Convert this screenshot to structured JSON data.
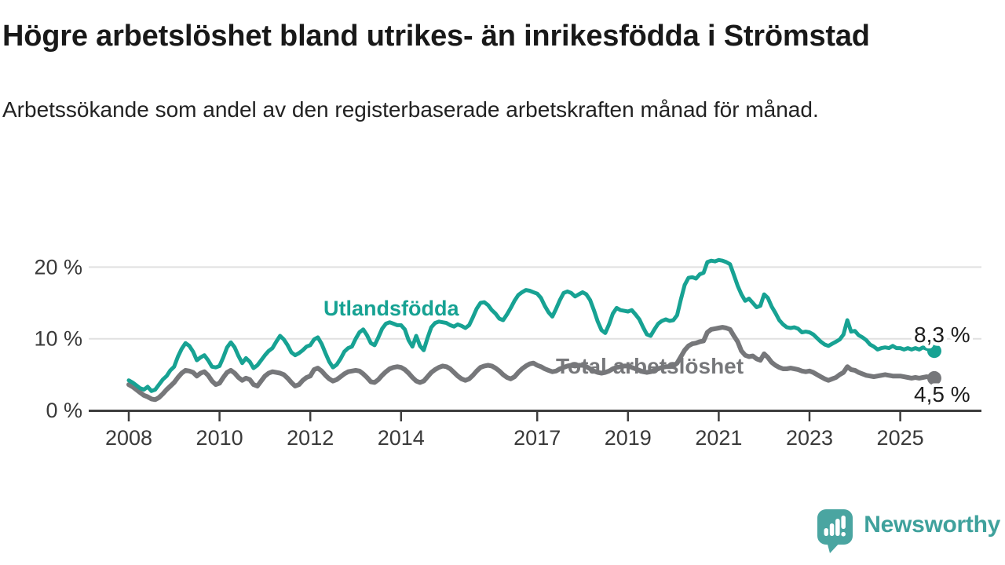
{
  "header": {
    "title": "Högre arbetslöshet bland utrikes- än inrikesfödda i Strömstad",
    "subtitle": "Arbetssökande som andel av den registerbaserade arbetskraften månad för månad."
  },
  "chart_data": {
    "type": "line",
    "title": "Högre arbetslöshet bland utrikes- än inrikesfödda i Strömstad",
    "subtitle": "Arbetssökande som andel av den registerbaserade arbetskraften månad för månad.",
    "x_start": "2008-01",
    "x_end": "2025-10",
    "frequency": "monthly",
    "xlabel": "",
    "ylabel": "",
    "ylim": [
      0,
      22
    ],
    "grid": "horizontal",
    "legend_position": "inline-labels",
    "xticks": [
      2008,
      2010,
      2012,
      2014,
      2017,
      2019,
      2021,
      2023,
      2025
    ],
    "yticks": [
      {
        "value": 0,
        "label": "0 %"
      },
      {
        "value": 10,
        "label": "10 %"
      },
      {
        "value": 20,
        "label": "20 %"
      }
    ],
    "series": [
      {
        "name": "Utlandsfödda",
        "color": "#17a293",
        "end_label": "8,3 %",
        "end_value": 8.3,
        "values": [
          4.2,
          3.9,
          3.5,
          3.1,
          2.9,
          3.3,
          2.7,
          2.9,
          3.6,
          4.3,
          4.8,
          5.6,
          6.1,
          7.5,
          8.6,
          9.4,
          9.0,
          8.2,
          7.0,
          7.4,
          7.7,
          7.0,
          6.1,
          6.0,
          6.2,
          7.4,
          8.8,
          9.5,
          8.8,
          7.6,
          6.6,
          7.3,
          6.8,
          5.9,
          6.3,
          7.0,
          7.7,
          8.3,
          8.7,
          9.6,
          10.4,
          9.9,
          9.1,
          8.1,
          7.7,
          8.0,
          8.4,
          8.9,
          9.1,
          9.9,
          10.2,
          9.3,
          8.0,
          6.8,
          6.0,
          6.4,
          7.2,
          8.2,
          8.7,
          8.9,
          10.0,
          10.9,
          11.3,
          10.5,
          9.4,
          9.1,
          10.2,
          11.4,
          12.1,
          12.3,
          12.1,
          11.9,
          11.9,
          11.3,
          9.8,
          8.9,
          10.4,
          9.0,
          8.4,
          10.1,
          11.6,
          12.2,
          12.4,
          12.3,
          12.2,
          11.9,
          11.7,
          12.0,
          11.8,
          11.5,
          11.9,
          13.0,
          14.2,
          15.0,
          15.1,
          14.7,
          14.0,
          13.5,
          12.8,
          12.6,
          13.4,
          14.3,
          15.3,
          16.1,
          16.5,
          16.8,
          16.7,
          16.5,
          16.3,
          15.7,
          14.6,
          13.7,
          13.1,
          14.2,
          15.4,
          16.4,
          16.6,
          16.4,
          15.9,
          16.2,
          16.5,
          16.2,
          15.4,
          14.0,
          12.4,
          11.2,
          10.8,
          12.0,
          13.5,
          14.3,
          14.0,
          13.9,
          13.8,
          14.0,
          13.4,
          12.7,
          11.6,
          10.6,
          10.4,
          11.3,
          12.1,
          12.5,
          12.7,
          12.5,
          12.6,
          13.3,
          15.5,
          17.5,
          18.5,
          18.6,
          18.4,
          19.0,
          19.2,
          20.7,
          20.9,
          20.8,
          21.0,
          20.9,
          20.7,
          20.4,
          18.9,
          17.4,
          16.2,
          15.3,
          15.6,
          15.0,
          14.4,
          14.6,
          16.2,
          15.7,
          14.5,
          13.6,
          12.6,
          12.0,
          11.6,
          11.5,
          11.6,
          11.4,
          10.9,
          11.0,
          10.9,
          10.6,
          10.1,
          9.6,
          9.2,
          9.0,
          9.3,
          9.6,
          9.9,
          10.6,
          12.6,
          11.0,
          11.1,
          10.5,
          10.2,
          9.8,
          9.2,
          8.9,
          8.5,
          8.7,
          8.8,
          8.7,
          9.0,
          8.7,
          8.7,
          8.5,
          8.7,
          8.5,
          8.7,
          8.5,
          8.8,
          8.6,
          8.4,
          8.3
        ]
      },
      {
        "name": "Total arbetslöshet",
        "color": "#76777a",
        "end_label": "4,5 %",
        "end_value": 4.5,
        "values": [
          3.6,
          3.3,
          2.9,
          2.5,
          2.1,
          1.9,
          1.6,
          1.5,
          1.8,
          2.3,
          2.9,
          3.4,
          3.9,
          4.6,
          5.2,
          5.6,
          5.5,
          5.3,
          4.8,
          5.2,
          5.4,
          4.9,
          4.1,
          3.6,
          3.8,
          4.6,
          5.3,
          5.6,
          5.2,
          4.6,
          4.2,
          4.5,
          4.3,
          3.6,
          3.4,
          4.1,
          4.8,
          5.2,
          5.4,
          5.3,
          5.2,
          5.0,
          4.5,
          3.9,
          3.4,
          3.6,
          4.2,
          4.6,
          4.8,
          5.7,
          5.9,
          5.5,
          4.9,
          4.4,
          4.1,
          4.3,
          4.7,
          5.1,
          5.4,
          5.5,
          5.6,
          5.5,
          5.1,
          4.6,
          4.0,
          3.9,
          4.3,
          4.9,
          5.4,
          5.8,
          6.0,
          6.1,
          6.0,
          5.7,
          5.2,
          4.6,
          4.1,
          3.9,
          4.1,
          4.7,
          5.3,
          5.7,
          6.0,
          6.2,
          6.1,
          5.8,
          5.3,
          4.8,
          4.4,
          4.2,
          4.4,
          4.9,
          5.5,
          6.0,
          6.2,
          6.3,
          6.2,
          5.9,
          5.5,
          5.0,
          4.6,
          4.4,
          4.7,
          5.3,
          5.8,
          6.2,
          6.5,
          6.6,
          6.3,
          6.1,
          5.8,
          5.6,
          5.4,
          5.5,
          5.8,
          6.0,
          6.2,
          6.3,
          6.2,
          6.3,
          6.3,
          6.1,
          5.8,
          5.5,
          5.3,
          5.2,
          5.3,
          5.5,
          5.8,
          6.0,
          6.1,
          6.2,
          6.2,
          6.0,
          5.8,
          5.6,
          5.4,
          5.3,
          5.4,
          5.6,
          5.8,
          6.0,
          6.1,
          6.1,
          6.2,
          6.6,
          7.5,
          8.4,
          9.0,
          9.3,
          9.4,
          9.6,
          9.7,
          10.9,
          11.3,
          11.4,
          11.5,
          11.6,
          11.5,
          11.3,
          10.4,
          9.6,
          8.3,
          7.7,
          7.5,
          7.6,
          7.2,
          7.0,
          7.9,
          7.4,
          6.7,
          6.3,
          6.0,
          5.8,
          5.8,
          5.9,
          5.8,
          5.7,
          5.5,
          5.4,
          5.5,
          5.3,
          5.0,
          4.7,
          4.4,
          4.2,
          4.4,
          4.6,
          5.0,
          5.3,
          6.1,
          5.7,
          5.6,
          5.3,
          5.1,
          4.9,
          4.8,
          4.7,
          4.8,
          4.9,
          5.0,
          4.9,
          4.8,
          4.8,
          4.8,
          4.7,
          4.6,
          4.5,
          4.6,
          4.5,
          4.6,
          4.7,
          4.6,
          4.5
        ]
      }
    ]
  },
  "footer": {
    "brand": "Newsworthy"
  },
  "colors": {
    "accent_teal": "#17a293",
    "series_gray": "#76777a",
    "grid": "#e0e0e0",
    "axis": "#3d3d3d",
    "tick_text": "#3a3a3a",
    "title_text": "#191919",
    "logo_bubble": "#4aa5a1",
    "logo_text": "#3fa19c"
  }
}
